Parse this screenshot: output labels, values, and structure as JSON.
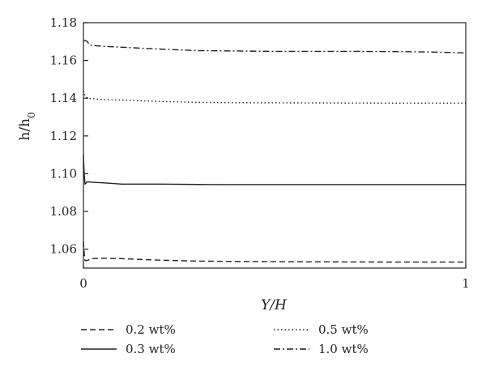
{
  "chart_data": {
    "type": "line",
    "title": "",
    "xlabel": "Y/H",
    "ylabel": {
      "main": "h/h",
      "sub": "0"
    },
    "xlim": [
      0,
      1
    ],
    "ylim": [
      1.05,
      1.18
    ],
    "x_ticks": [
      {
        "value": 0,
        "label": "0"
      },
      {
        "value": 1,
        "label": "1"
      }
    ],
    "y_ticks": [
      {
        "value": 1.06,
        "label": "1.06"
      },
      {
        "value": 1.08,
        "label": "1.08"
      },
      {
        "value": 1.1,
        "label": "1.10"
      },
      {
        "value": 1.12,
        "label": "1.12"
      },
      {
        "value": 1.14,
        "label": "1.14"
      },
      {
        "value": 1.16,
        "label": "1.16"
      },
      {
        "value": 1.18,
        "label": "1.18"
      }
    ],
    "grid": false,
    "legend_position": "bottom",
    "series": [
      {
        "name": "0.2 wt%",
        "dash": "dashed",
        "color": "#222222",
        "x": [
          0,
          0.002,
          0.004,
          0.006,
          0.01,
          0.02,
          0.05,
          0.1,
          0.2,
          0.3,
          0.4,
          0.6,
          0.8,
          1.0
        ],
        "y": [
          1.064,
          1.058,
          1.054,
          1.054,
          1.054,
          1.055,
          1.0552,
          1.055,
          1.0542,
          1.0537,
          1.0535,
          1.0533,
          1.0532,
          1.0532
        ]
      },
      {
        "name": "0.5 wt%",
        "dash": "dotted",
        "color": "#222222",
        "x": [
          0,
          0.003,
          0.006,
          0.01,
          0.02,
          0.05,
          0.1,
          0.2,
          0.3,
          0.4,
          0.6,
          0.8,
          1.0
        ],
        "y": [
          1.144,
          1.142,
          1.141,
          1.14,
          1.1398,
          1.1393,
          1.139,
          1.1383,
          1.1378,
          1.1376,
          1.1375,
          1.1374,
          1.1374
        ]
      },
      {
        "name": "0.3 wt%",
        "dash": "solid",
        "color": "#222222",
        "x": [
          0,
          0.002,
          0.004,
          0.006,
          0.008,
          0.012,
          0.02,
          0.05,
          0.1,
          0.2,
          0.3,
          0.4,
          0.6,
          0.8,
          1.0
        ],
        "y": [
          1.11,
          1.1,
          1.0945,
          1.0948,
          1.0955,
          1.0957,
          1.0955,
          1.0952,
          1.0945,
          1.0945,
          1.0943,
          1.0942,
          1.0942,
          1.0942,
          1.0942
        ]
      },
      {
        "name": "1.0 wt%",
        "dash": "dashdot",
        "color": "#222222",
        "x": [
          0,
          0.005,
          0.01,
          0.015,
          0.02,
          0.05,
          0.1,
          0.2,
          0.3,
          0.4,
          0.5,
          0.6,
          0.7,
          0.8,
          0.9,
          1.0
        ],
        "y": [
          1.1705,
          1.1705,
          1.17,
          1.1685,
          1.168,
          1.1675,
          1.167,
          1.166,
          1.1652,
          1.165,
          1.1648,
          1.1648,
          1.1648,
          1.1647,
          1.1645,
          1.164
        ]
      }
    ]
  }
}
